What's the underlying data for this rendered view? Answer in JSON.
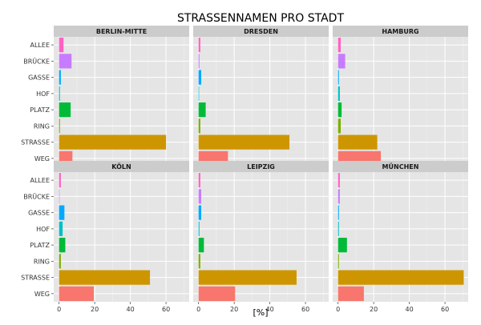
{
  "chart_data": {
    "type": "bar",
    "orientation": "horizontal",
    "title": "STRASSENNAMEN PRO STADT",
    "xlabel": "[%]",
    "ylabel": "",
    "xlim": [
      -3,
      73
    ],
    "xticks": [
      0,
      20,
      40,
      60
    ],
    "grid": true,
    "legend": "none",
    "categories": [
      "ALLEE",
      "BRÜCKE",
      "GASSE",
      "HOF",
      "PLATZ",
      "RING",
      "STRASSE",
      "WEG"
    ],
    "colors": [
      "#FF61C3",
      "#C77CFF",
      "#00A9FF",
      "#00BFC4",
      "#00BA38",
      "#7CAE00",
      "#CD9600",
      "#F8766D"
    ],
    "panels": [
      {
        "name": "BERLIN-MITTE",
        "values": [
          2.5,
          7,
          1,
          0.5,
          6.5,
          0.5,
          60,
          7.5
        ]
      },
      {
        "name": "DRESDEN",
        "values": [
          1,
          0.5,
          1.5,
          0.3,
          4,
          1,
          51,
          16.5
        ]
      },
      {
        "name": "HAMBURG",
        "values": [
          1.5,
          4,
          0.5,
          1,
          2,
          1.5,
          22,
          24
        ]
      },
      {
        "name": "KÖLN",
        "values": [
          1,
          0.3,
          3,
          2,
          3.5,
          1,
          51,
          19.5
        ]
      },
      {
        "name": "LEIPZIG",
        "values": [
          1,
          1.5,
          1.5,
          0.5,
          3,
          1,
          55,
          20.5
        ]
      },
      {
        "name": "MÜNCHEN",
        "values": [
          1,
          1,
          0.5,
          0.5,
          5,
          0.5,
          70.5,
          14.5
        ]
      }
    ]
  }
}
